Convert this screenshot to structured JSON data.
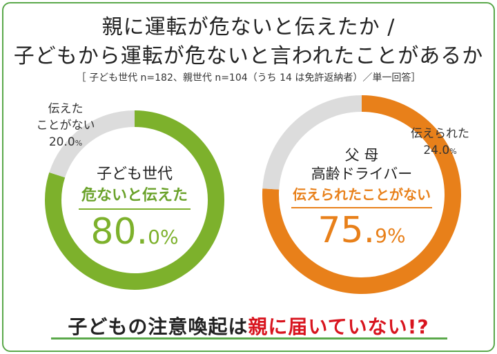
{
  "title": {
    "line1": "親に運転が危ないと伝えたか /",
    "line2": "子どもから運転が危ないと言われたことがあるか"
  },
  "note": "［ 子ども世代 n=182、親世代 n=104（うち 14 は免許返納者）／単一回答］",
  "colors": {
    "green": "#7db12c",
    "orange": "#e8801a",
    "gray": "#dcdcdc",
    "frame": "#5aa84a",
    "red": "#d8141e"
  },
  "chart_data": [
    {
      "type": "pie",
      "group": "子ども世代",
      "highlight_label": "危ないと伝えた",
      "slices": [
        {
          "label": "危ないと伝えた",
          "value": 80.0,
          "color": "#7db12c"
        },
        {
          "label": "伝えたことがない",
          "value": 20.0,
          "color": "#dcdcdc"
        }
      ],
      "center_value_main": "80.",
      "center_value_decimal": "0",
      "center_value_unit": "%",
      "gray_label_line1": "伝えた",
      "gray_label_line2": "ことがない",
      "gray_value": "20.0",
      "gray_unit": "%"
    },
    {
      "type": "pie",
      "group_line1": "父 母",
      "group_line2": "高齢ドライバー",
      "highlight_label": "伝えられたことがない",
      "slices": [
        {
          "label": "伝えられたことがない",
          "value": 75.9,
          "color": "#e8801a"
        },
        {
          "label": "伝えられた",
          "value": 24.0,
          "color": "#dcdcdc"
        }
      ],
      "center_value_main": "75.",
      "center_value_decimal": "9",
      "center_value_unit": "%",
      "gray_label_line1": "伝えられた",
      "gray_value": "24.0",
      "gray_unit": "%"
    }
  ],
  "bottom": {
    "prefix": "子どもの注意喚起は",
    "highlight": "親に届いていない",
    "suffix": "!?"
  }
}
